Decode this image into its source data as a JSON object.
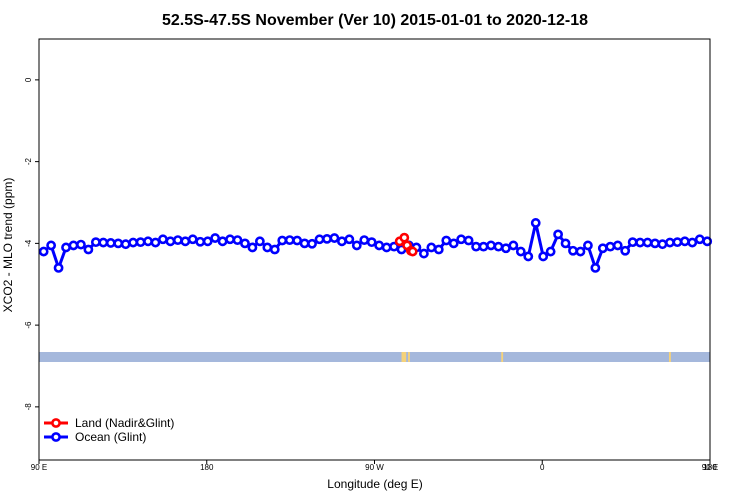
{
  "chart_data": {
    "type": "line",
    "title": "52.5S-47.5S November (Ver 10)   2015-01-01 to 2020-12-18",
    "xlabel": "Longitude (deg E)",
    "ylabel": "XCO2 - MLO trend (ppm)",
    "xlim": [
      90,
      450
    ],
    "ylim": [
      -9.3,
      1.0
    ],
    "x_ticks": [
      {
        "value": 90,
        "label": "90 E"
      },
      {
        "value": 180,
        "label": "180"
      },
      {
        "value": 270,
        "label": "90 W"
      },
      {
        "value": 360,
        "label": "0"
      },
      {
        "value": 450,
        "label": "90 E"
      },
      {
        "value": 540,
        "label": "180"
      }
    ],
    "y_ticks": [
      {
        "value": 0,
        "label": "0"
      },
      {
        "value": -2,
        "label": "-2"
      },
      {
        "value": -4,
        "label": "-4"
      },
      {
        "value": -6,
        "label": "-6"
      },
      {
        "value": -8,
        "label": "-8"
      }
    ],
    "grid": false,
    "legend_position": "bottom-left",
    "land_strip": {
      "y": -6.78,
      "ocean_color": "#a5b8dc",
      "land_color": "#f5d27a",
      "land_ranges": [
        [
          284.5,
          287
        ],
        [
          288,
          289
        ],
        [
          338,
          339
        ],
        [
          428,
          429
        ]
      ]
    },
    "series": [
      {
        "name": "Land (Nadir&Glint)",
        "color": "#ff0000",
        "x": [
          283.5,
          286.0,
          287.5,
          289.5,
          290.5
        ],
        "y": [
          -3.95,
          -3.86,
          -4.05,
          -4.18,
          -4.2
        ]
      },
      {
        "name": "Ocean (Glint)",
        "color": "#0000ff",
        "x": [
          92.5,
          96.5,
          100.5,
          104.5,
          108.5,
          112.5,
          116.5,
          120.5,
          124.5,
          128.5,
          132.5,
          136.5,
          140.5,
          144.5,
          148.5,
          152.5,
          156.5,
          160.5,
          164.5,
          168.5,
          172.5,
          176.5,
          180.5,
          184.5,
          188.5,
          192.5,
          196.5,
          200.5,
          204.5,
          208.5,
          212.5,
          216.5,
          220.5,
          224.5,
          228.5,
          232.5,
          236.5,
          240.5,
          244.5,
          248.5,
          252.5,
          256.5,
          260.5,
          264.5,
          268.5,
          272.5,
          276.5,
          280.5,
          284.5,
          288.5,
          292.5,
          296.5,
          300.5,
          304.5,
          308.5,
          312.5,
          316.5,
          320.5,
          324.5,
          328.5,
          332.5,
          336.5,
          340.5,
          344.5,
          348.5,
          352.5,
          356.5,
          360.5,
          364.5,
          368.5,
          372.5,
          376.5,
          380.5,
          384.5,
          388.5,
          392.5,
          396.5,
          400.5,
          404.5,
          408.5,
          412.5,
          416.5,
          420.5,
          424.5,
          428.5,
          432.5,
          436.5,
          440.5,
          444.5,
          448.5
        ],
        "y": [
          -4.2,
          -4.05,
          -4.6,
          -4.1,
          -4.05,
          -4.03,
          -4.15,
          -3.97,
          -3.98,
          -3.99,
          -4.0,
          -4.02,
          -3.98,
          -3.97,
          -3.95,
          -3.98,
          -3.9,
          -3.95,
          -3.92,
          -3.95,
          -3.9,
          -3.96,
          -3.95,
          -3.87,
          -3.95,
          -3.9,
          -3.92,
          -4.0,
          -4.1,
          -3.95,
          -4.1,
          -4.15,
          -3.93,
          -3.92,
          -3.93,
          -4.0,
          -4.01,
          -3.9,
          -3.89,
          -3.87,
          -3.95,
          -3.9,
          -4.05,
          -3.92,
          -3.97,
          -4.05,
          -4.1,
          -4.08,
          -4.15,
          -4.05,
          -4.1,
          -4.25,
          -4.1,
          -4.15,
          -3.93,
          -4.0,
          -3.9,
          -3.93,
          -4.08,
          -4.08,
          -4.05,
          -4.08,
          -4.12,
          -4.05,
          -4.2,
          -4.32,
          -3.5,
          -4.32,
          -4.2,
          -3.78,
          -4.0,
          -4.18,
          -4.2,
          -4.05,
          -4.6,
          -4.12,
          -4.08,
          -4.05,
          -4.18,
          -3.97,
          -3.98,
          -3.98,
          -4.0,
          -4.02,
          -3.98,
          -3.97,
          -3.95,
          -3.98,
          -3.9,
          -3.95
        ]
      }
    ]
  }
}
